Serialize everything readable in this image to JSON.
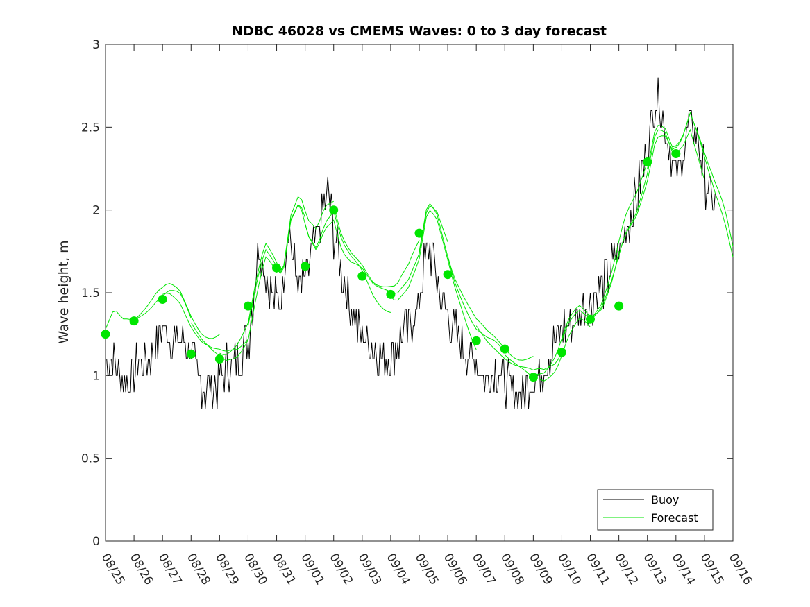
{
  "chart_data": {
    "type": "line",
    "title": "NDBC 46028 vs CMEMS Waves: 0 to 3 day forecast",
    "xlabel": "",
    "ylabel": "Wave height, m",
    "ylim": [
      0,
      3
    ],
    "yticks": [
      "0",
      "0.5",
      "1",
      "1.5",
      "2",
      "2.5",
      "3"
    ],
    "xlim_days": [
      0,
      22
    ],
    "xticks": [
      "08/25",
      "08/26",
      "08/27",
      "08/28",
      "08/29",
      "08/30",
      "08/31",
      "09/01",
      "09/02",
      "09/03",
      "09/04",
      "09/05",
      "09/06",
      "09/07",
      "09/08",
      "09/09",
      "09/10",
      "09/11",
      "09/12",
      "09/13",
      "09/14",
      "09/15",
      "09/16"
    ],
    "grid": false,
    "legend": {
      "position": "bottom-right",
      "entries": [
        "Buoy",
        "Forecast"
      ]
    },
    "colors": {
      "buoy": "#000000",
      "forecast": "#00e600"
    },
    "buoy_anchors": [
      [
        0.0,
        1.1
      ],
      [
        0.2,
        1.1
      ],
      [
        0.4,
        1.05
      ],
      [
        0.6,
        0.95
      ],
      [
        0.8,
        0.95
      ],
      [
        1.0,
        1.0
      ],
      [
        1.2,
        1.1
      ],
      [
        1.5,
        1.1
      ],
      [
        1.8,
        1.2
      ],
      [
        2.0,
        1.3
      ],
      [
        2.2,
        1.25
      ],
      [
        2.5,
        1.2
      ],
      [
        2.8,
        1.2
      ],
      [
        3.0,
        1.15
      ],
      [
        3.3,
        0.95
      ],
      [
        3.6,
        0.9
      ],
      [
        3.9,
        0.95
      ],
      [
        4.2,
        1.05
      ],
      [
        4.5,
        1.1
      ],
      [
        4.8,
        1.15
      ],
      [
        5.0,
        1.2
      ],
      [
        5.2,
        1.5
      ],
      [
        5.4,
        1.8
      ],
      [
        5.6,
        1.6
      ],
      [
        5.8,
        1.5
      ],
      [
        6.0,
        1.45
      ],
      [
        6.2,
        1.5
      ],
      [
        6.4,
        1.9
      ],
      [
        6.6,
        1.7
      ],
      [
        6.8,
        1.5
      ],
      [
        7.0,
        1.6
      ],
      [
        7.2,
        1.7
      ],
      [
        7.4,
        1.8
      ],
      [
        7.6,
        2.0
      ],
      [
        7.8,
        2.1
      ],
      [
        8.0,
        1.85
      ],
      [
        8.2,
        1.7
      ],
      [
        8.4,
        1.55
      ],
      [
        8.6,
        1.4
      ],
      [
        8.8,
        1.3
      ],
      [
        9.0,
        1.25
      ],
      [
        9.2,
        1.2
      ],
      [
        9.5,
        1.15
      ],
      [
        9.8,
        1.1
      ],
      [
        10.1,
        1.15
      ],
      [
        10.4,
        1.25
      ],
      [
        10.7,
        1.3
      ],
      [
        11.0,
        1.45
      ],
      [
        11.2,
        1.7
      ],
      [
        11.4,
        1.75
      ],
      [
        11.6,
        1.6
      ],
      [
        11.8,
        1.45
      ],
      [
        12.0,
        1.35
      ],
      [
        12.2,
        1.3
      ],
      [
        12.5,
        1.2
      ],
      [
        12.8,
        1.1
      ],
      [
        13.1,
        1.05
      ],
      [
        13.4,
        1.0
      ],
      [
        13.7,
        1.05
      ],
      [
        14.0,
        0.95
      ],
      [
        14.3,
        0.9
      ],
      [
        14.6,
        0.9
      ],
      [
        14.9,
        0.95
      ],
      [
        15.2,
        1.0
      ],
      [
        15.5,
        1.1
      ],
      [
        15.8,
        1.2
      ],
      [
        16.1,
        1.3
      ],
      [
        16.4,
        1.35
      ],
      [
        16.7,
        1.4
      ],
      [
        17.0,
        1.45
      ],
      [
        17.3,
        1.5
      ],
      [
        17.6,
        1.6
      ],
      [
        17.9,
        1.7
      ],
      [
        18.2,
        1.85
      ],
      [
        18.5,
        2.0
      ],
      [
        18.8,
        2.2
      ],
      [
        19.0,
        2.4
      ],
      [
        19.2,
        2.6
      ],
      [
        19.4,
        2.7
      ],
      [
        19.6,
        2.5
      ],
      [
        19.8,
        2.35
      ],
      [
        20.0,
        2.2
      ],
      [
        20.2,
        2.3
      ],
      [
        20.4,
        2.5
      ],
      [
        20.6,
        2.55
      ],
      [
        20.8,
        2.4
      ],
      [
        21.0,
        2.2
      ],
      [
        21.2,
        2.1
      ],
      [
        21.4,
        2.0
      ]
    ],
    "forecast_dots": [
      [
        0,
        1.25
      ],
      [
        1,
        1.33
      ],
      [
        2,
        1.46
      ],
      [
        3,
        1.13
      ],
      [
        4,
        1.1
      ],
      [
        5,
        1.42
      ],
      [
        6,
        1.65
      ],
      [
        7,
        1.66
      ],
      [
        8,
        2.0
      ],
      [
        9,
        1.6
      ],
      [
        10,
        1.49
      ],
      [
        11,
        1.86
      ],
      [
        12,
        1.61
      ],
      [
        13,
        1.21
      ],
      [
        14,
        1.16
      ],
      [
        15,
        0.99
      ],
      [
        16,
        1.14
      ],
      [
        17,
        1.34
      ],
      [
        18,
        1.42
      ],
      [
        19,
        2.29
      ],
      [
        20,
        2.34
      ]
    ],
    "forecast_anchors": [
      [
        0.0,
        1.28
      ],
      [
        0.3,
        1.4
      ],
      [
        0.6,
        1.33
      ],
      [
        1.0,
        1.33
      ],
      [
        1.4,
        1.4
      ],
      [
        1.8,
        1.48
      ],
      [
        2.2,
        1.5
      ],
      [
        2.6,
        1.45
      ],
      [
        3.0,
        1.32
      ],
      [
        3.4,
        1.22
      ],
      [
        3.8,
        1.15
      ],
      [
        4.2,
        1.12
      ],
      [
        4.6,
        1.18
      ],
      [
        5.0,
        1.3
      ],
      [
        5.3,
        1.55
      ],
      [
        5.6,
        1.75
      ],
      [
        5.9,
        1.68
      ],
      [
        6.2,
        1.6
      ],
      [
        6.5,
        1.95
      ],
      [
        6.8,
        2.05
      ],
      [
        7.1,
        1.85
      ],
      [
        7.4,
        1.78
      ],
      [
        7.7,
        1.95
      ],
      [
        8.0,
        2.02
      ],
      [
        8.3,
        1.82
      ],
      [
        8.6,
        1.72
      ],
      [
        9.0,
        1.65
      ],
      [
        9.4,
        1.55
      ],
      [
        9.8,
        1.5
      ],
      [
        10.2,
        1.45
      ],
      [
        10.6,
        1.55
      ],
      [
        11.0,
        1.75
      ],
      [
        11.3,
        2.05
      ],
      [
        11.6,
        1.98
      ],
      [
        11.9,
        1.78
      ],
      [
        12.2,
        1.6
      ],
      [
        12.6,
        1.45
      ],
      [
        13.0,
        1.3
      ],
      [
        13.4,
        1.2
      ],
      [
        13.8,
        1.15
      ],
      [
        14.2,
        1.1
      ],
      [
        14.6,
        1.05
      ],
      [
        15.0,
        1.0
      ],
      [
        15.4,
        1.02
      ],
      [
        15.8,
        1.12
      ],
      [
        16.2,
        1.3
      ],
      [
        16.6,
        1.38
      ],
      [
        17.0,
        1.33
      ],
      [
        17.4,
        1.42
      ],
      [
        17.8,
        1.6
      ],
      [
        18.2,
        1.85
      ],
      [
        18.6,
        2.0
      ],
      [
        19.0,
        2.25
      ],
      [
        19.3,
        2.5
      ],
      [
        19.6,
        2.48
      ],
      [
        19.9,
        2.35
      ],
      [
        20.2,
        2.42
      ],
      [
        20.5,
        2.58
      ],
      [
        20.8,
        2.42
      ],
      [
        21.1,
        2.22
      ],
      [
        21.4,
        2.05
      ],
      [
        21.7,
        1.92
      ],
      [
        22.0,
        1.72
      ]
    ]
  }
}
